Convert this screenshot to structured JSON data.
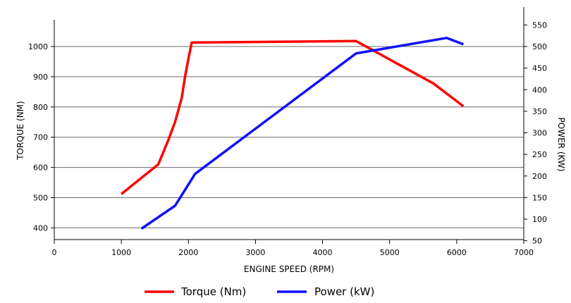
{
  "chart_data": {
    "type": "line",
    "title": "",
    "xlabel": "ENGINE SPEED (RPM)",
    "ylabel_left": "TORQUE (NM)",
    "ylabel_right": "POWER (KW)",
    "xlim": [
      0,
      7000
    ],
    "ylim_left": [
      350,
      1100
    ],
    "ylim_right": [
      0,
      580
    ],
    "xticks": [
      0,
      1000,
      2000,
      3000,
      4000,
      5000,
      6000,
      7000
    ],
    "yticks_left": [
      400,
      500,
      600,
      700,
      800,
      900,
      1000
    ],
    "yticks_right": [
      50,
      100,
      150,
      200,
      250,
      300,
      350,
      400,
      450,
      500,
      550
    ],
    "grid": "horizontal",
    "legend_position": "bottom",
    "series": [
      {
        "name": "Torque (Nm)",
        "axis": "left",
        "color": "#ff0000",
        "x": [
          1000,
          1550,
          1700,
          1800,
          1900,
          1950,
          2000,
          2050,
          4500,
          5650,
          6100
        ],
        "y": [
          512,
          610,
          690,
          750,
          830,
          900,
          960,
          1013,
          1018,
          878,
          802
        ]
      },
      {
        "name": "Power (kW)",
        "axis": "right",
        "color": "#1010ff",
        "x": [
          1300,
          1800,
          2100,
          4500,
          5850,
          6100
        ],
        "y": [
          78,
          131,
          205,
          484,
          520,
          505
        ]
      }
    ]
  }
}
